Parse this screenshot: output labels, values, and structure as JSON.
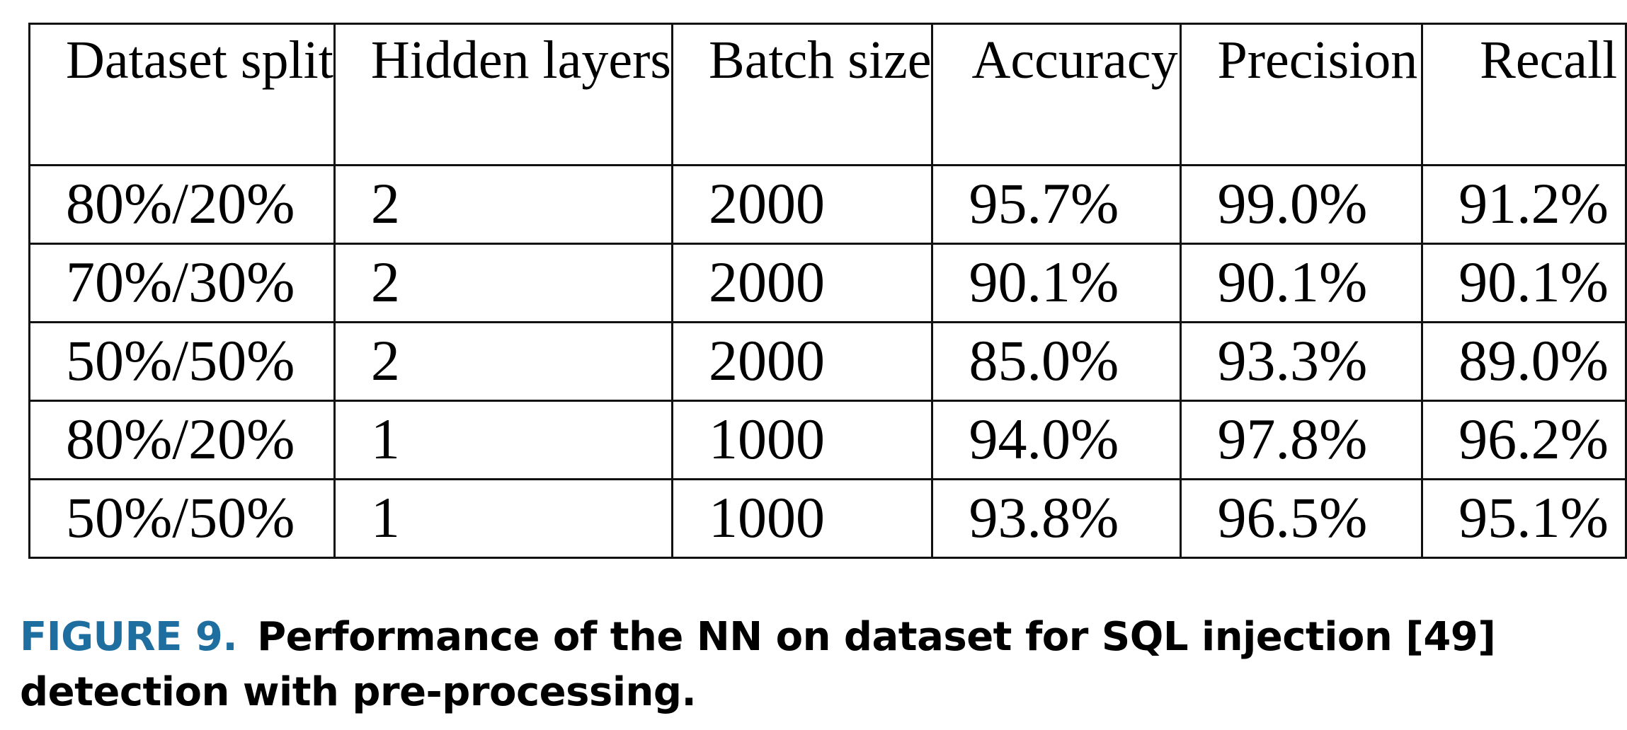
{
  "table": {
    "headers": [
      "Dataset split",
      "Hidden layers",
      "Batch size",
      "Accuracy",
      "Precision",
      "Recall"
    ],
    "rows": [
      [
        "80%/20%",
        "2",
        "2000",
        "95.7%",
        "99.0%",
        "91.2%"
      ],
      [
        "70%/30%",
        "2",
        "2000",
        "90.1%",
        "90.1%",
        "90.1%"
      ],
      [
        "50%/50%",
        "2",
        "2000",
        "85.0%",
        "93.3%",
        "89.0%"
      ],
      [
        "80%/20%",
        "1",
        "1000",
        "94.0%",
        "97.8%",
        "96.2%"
      ],
      [
        "50%/50%",
        "1",
        "1000",
        "93.8%",
        "96.5%",
        "95.1%"
      ]
    ]
  },
  "caption": {
    "label": "FIGURE 9.",
    "text": "Performance of the NN on dataset for SQL injection [49] detection with pre-processing."
  },
  "colors": {
    "caption_label": "#1f6ea0",
    "text": "#000000",
    "border": "#111111"
  }
}
